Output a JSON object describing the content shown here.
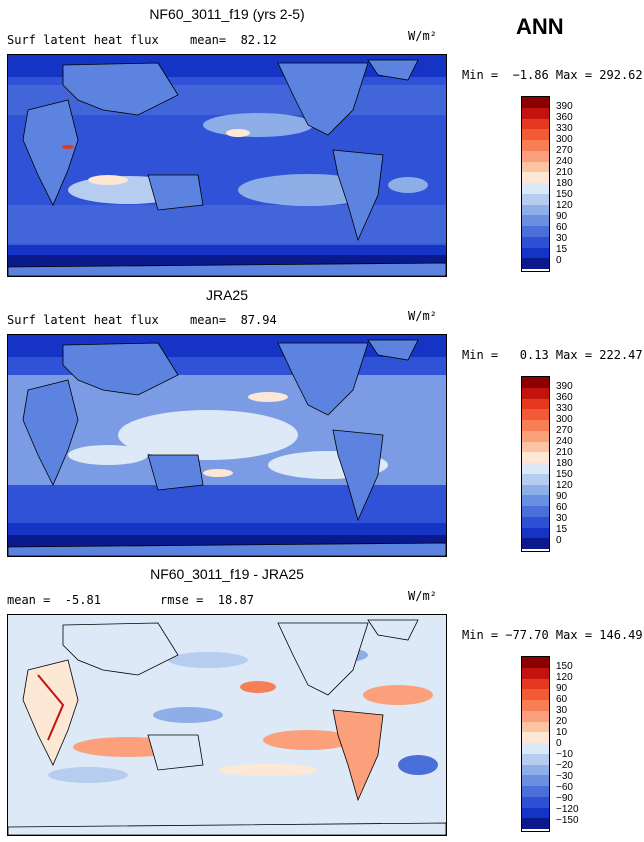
{
  "season": "ANN",
  "panels": [
    {
      "title": "NF60_3011_f19 (yrs 2-5)",
      "subtitle_left": "Surf latent heat flux",
      "subtitle_mid": "mean=  82.12",
      "units": "W/m²",
      "minmax": "Min =  −1.86 Max = 292.62",
      "colorbar_labels": [
        "390",
        "360",
        "330",
        "300",
        "270",
        "240",
        "210",
        "180",
        "150",
        "120",
        "90",
        "60",
        "30",
        "15",
        "0"
      ],
      "colorbar_colors": [
        "#8b0000",
        "#c4130c",
        "#e5381f",
        "#f25a35",
        "#f77e55",
        "#fba07b",
        "#fdc4a4",
        "#fde8d6",
        "#dde9f7",
        "#b6cdf0",
        "#8eaee8",
        "#6a8ee0",
        "#4a6fdb",
        "#2c50d4",
        "#1533c4",
        "#0a1a8c"
      ],
      "colors": {
        "ocean_base": "#2f52d6",
        "land_base": "#5b83df"
      }
    },
    {
      "title": "JRA25",
      "subtitle_left": "Surf latent heat flux",
      "subtitle_mid": "mean=  87.94",
      "units": "W/m²",
      "minmax": "Min =   0.13 Max = 222.47",
      "colorbar_labels": [
        "390",
        "360",
        "330",
        "300",
        "270",
        "240",
        "210",
        "180",
        "150",
        "120",
        "90",
        "60",
        "30",
        "15",
        "0"
      ],
      "colorbar_colors": [
        "#8b0000",
        "#c4130c",
        "#e5381f",
        "#f25a35",
        "#f77e55",
        "#fba07b",
        "#fdc4a4",
        "#fde8d6",
        "#dde9f7",
        "#b6cdf0",
        "#8eaee8",
        "#6a8ee0",
        "#4a6fdb",
        "#2c50d4",
        "#1533c4",
        "#0a1a8c"
      ],
      "colors": {
        "ocean_base": "#2f52d6",
        "land_base": "#5b83df"
      }
    },
    {
      "title": "NF60_3011_f19 - JRA25",
      "subtitle_left": "mean =  -5.81",
      "subtitle_mid": "rmse =  18.87",
      "units": "W/m²",
      "minmax": "Min = −77.70 Max = 146.49",
      "colorbar_labels": [
        "150",
        "120",
        "90",
        "60",
        "30",
        "20",
        "10",
        "0",
        "−10",
        "−20",
        "−30",
        "−60",
        "−90",
        "−120",
        "−150"
      ],
      "colorbar_colors": [
        "#8b0000",
        "#c4130c",
        "#e5381f",
        "#f25a35",
        "#f77e55",
        "#fba07b",
        "#fdc4a4",
        "#fde8d6",
        "#dde9f7",
        "#b6cdf0",
        "#8eaee8",
        "#6a8ee0",
        "#4a6fdb",
        "#2c50d4",
        "#1533c4",
        "#0a1a8c"
      ],
      "colors": {
        "ocean_base": "#dde9f7",
        "land_base": "#dde9f7"
      }
    }
  ]
}
